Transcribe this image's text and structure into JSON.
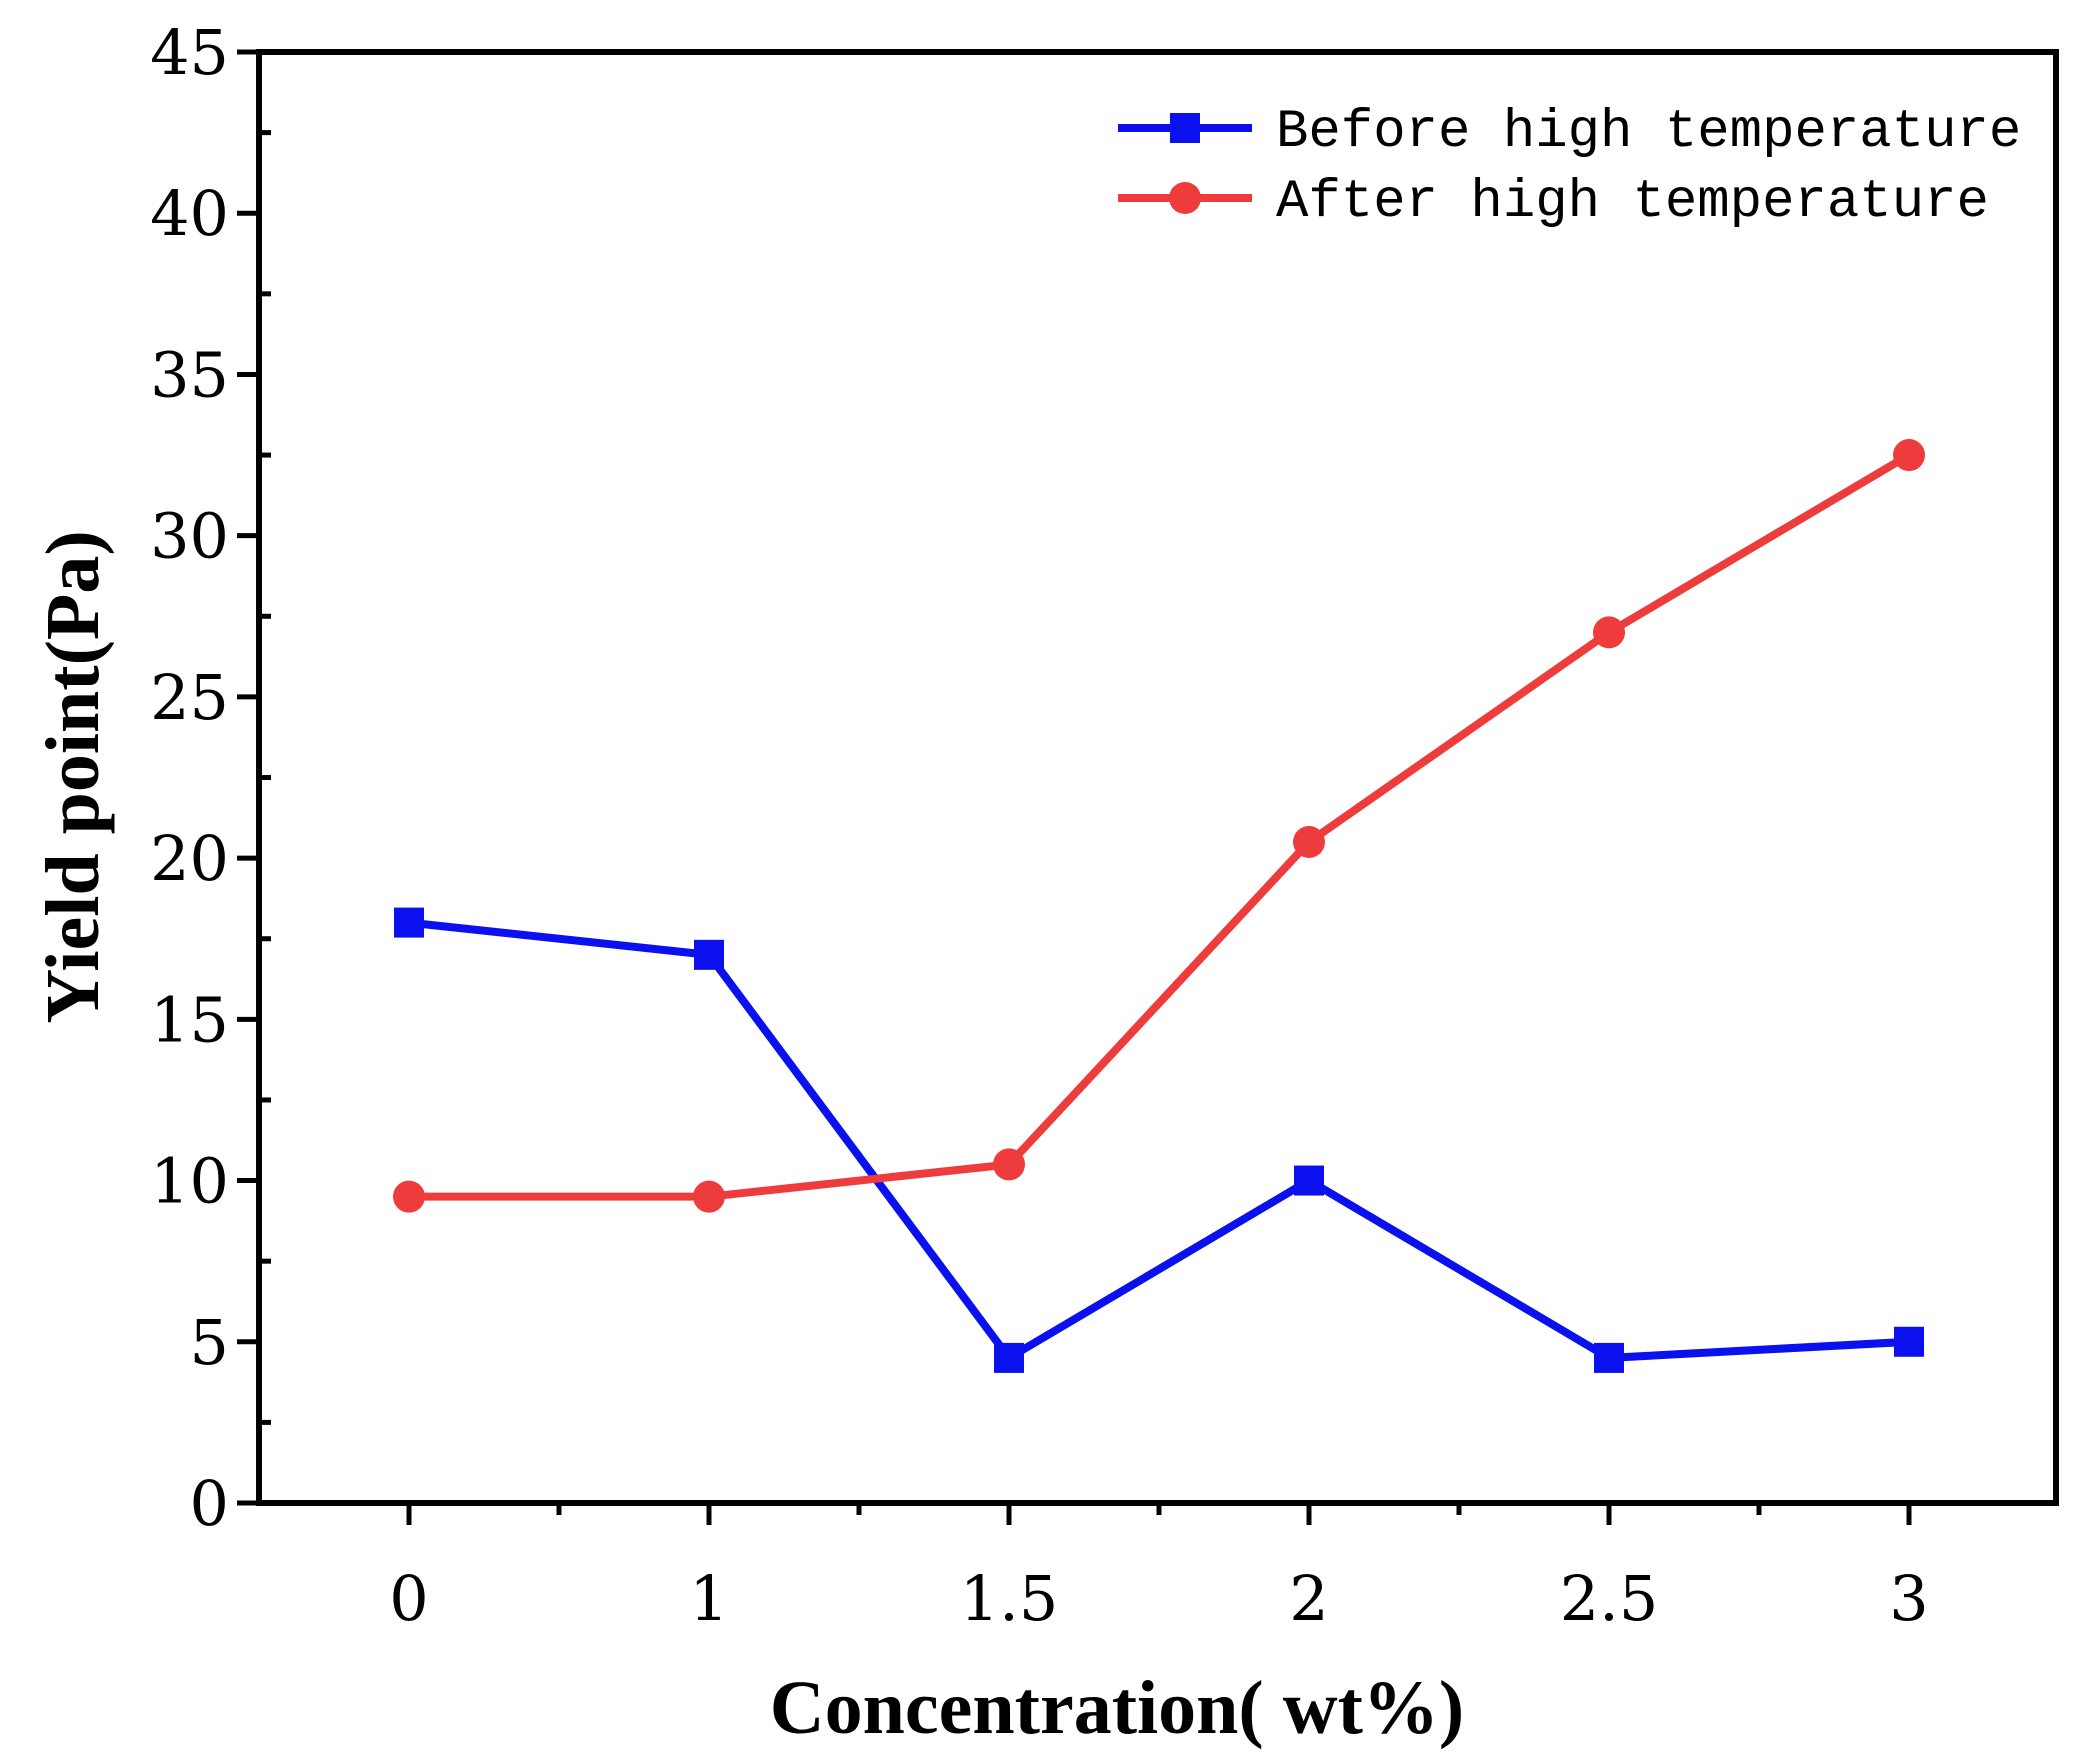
{
  "chart_data": {
    "type": "line",
    "categories": [
      "0",
      "1",
      "1.5",
      "2",
      "2.5",
      "3"
    ],
    "series": [
      {
        "name": "Before high temperature",
        "values": [
          18,
          17,
          4.5,
          10,
          4.5,
          5
        ],
        "color": "#0a10ee",
        "marker": "square"
      },
      {
        "name": "After high temperature",
        "values": [
          9.5,
          9.5,
          10.5,
          20.5,
          27,
          32.5
        ],
        "color": "#ee3b3b",
        "marker": "circle"
      }
    ],
    "xlabel": "Concentration( wt%)",
    "ylabel": "Yield point(Pa)",
    "ylim": [
      0,
      45
    ],
    "yticks": [
      0,
      5,
      10,
      15,
      20,
      25,
      30,
      35,
      40,
      45
    ],
    "grid": false,
    "legend_position": "top-right"
  }
}
